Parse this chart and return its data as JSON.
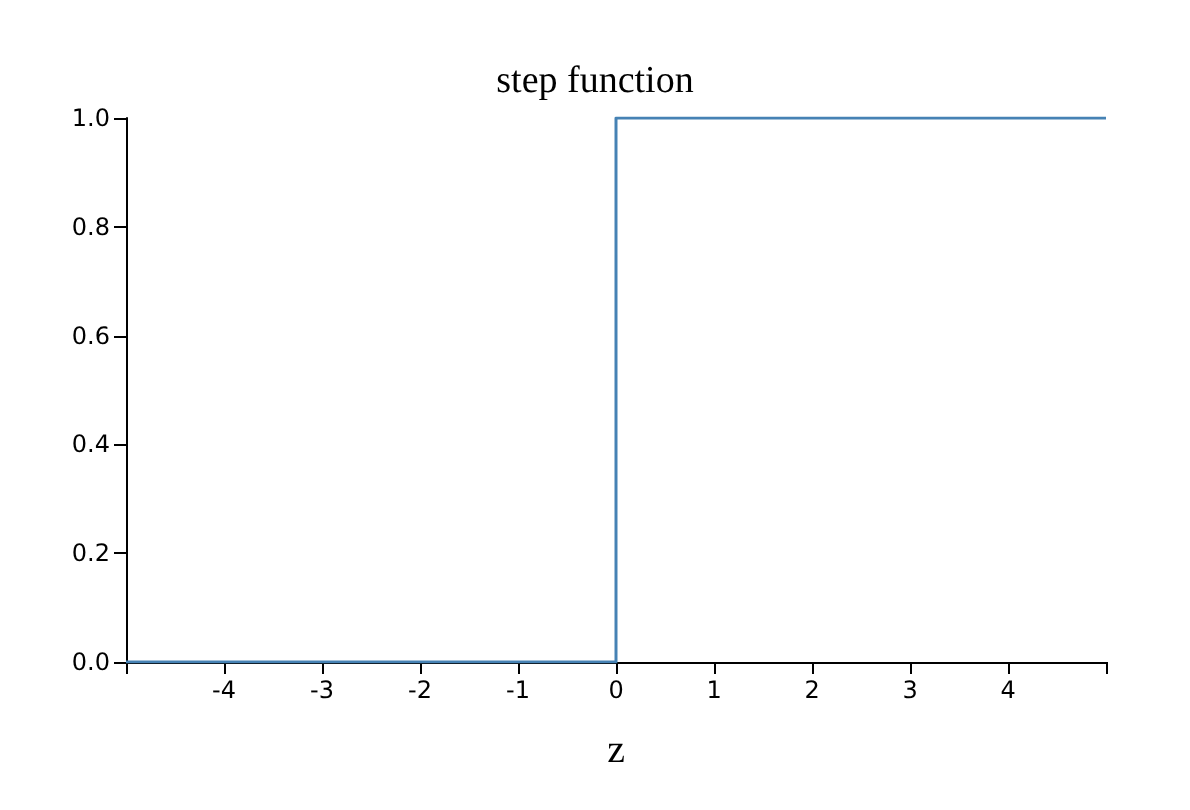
{
  "chart_data": {
    "type": "step",
    "title": "step function",
    "xlabel": "z",
    "x": [
      -5,
      0,
      5
    ],
    "series": [
      {
        "color": "#4682b4",
        "values": [
          0,
          1,
          1
        ]
      }
    ],
    "xlim": [
      -5,
      5
    ],
    "xticks": [
      {
        "value": -5,
        "label": null
      },
      -4,
      -3,
      -2,
      -1,
      0,
      1,
      2,
      3,
      4,
      {
        "value": 5,
        "label": null
      }
    ],
    "ylim": [
      0,
      1
    ],
    "yticks": [
      {
        "value": 0,
        "label": "0.0"
      },
      {
        "value": 0.2,
        "label": "0.2"
      },
      {
        "value": 0.4,
        "label": "0.4"
      },
      {
        "value": 0.6,
        "label": "0.6"
      },
      {
        "value": 0.8,
        "label": "0.8"
      },
      {
        "value": 1,
        "label": "1.0"
      }
    ],
    "grid": false,
    "marker": "none",
    "line_style": "solid"
  }
}
